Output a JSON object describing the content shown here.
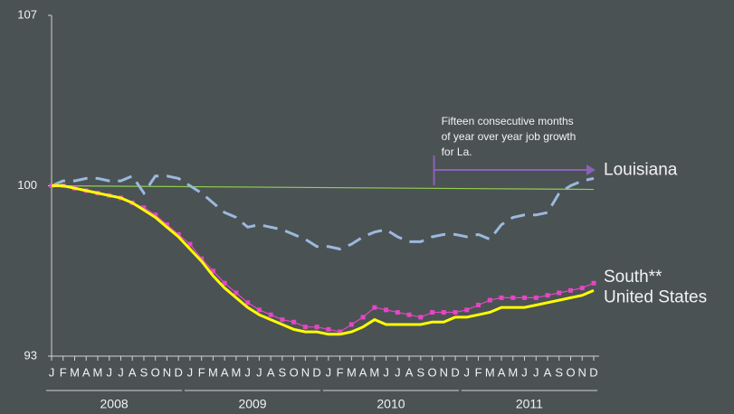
{
  "chart_data": {
    "type": "line",
    "categories": [
      "J",
      "F",
      "M",
      "A",
      "M",
      "J",
      "J",
      "A",
      "S",
      "O",
      "N",
      "D",
      "J",
      "F",
      "M",
      "A",
      "M",
      "J",
      "J",
      "A",
      "S",
      "O",
      "N",
      "D",
      "J",
      "F",
      "M",
      "A",
      "M",
      "J",
      "J",
      "A",
      "S",
      "O",
      "N",
      "D",
      "J",
      "F",
      "M",
      "A",
      "M",
      "J",
      "J",
      "A",
      "S",
      "O",
      "N",
      "D"
    ],
    "years": [
      "2008",
      "2009",
      "2010",
      "2011"
    ],
    "ylim": [
      93,
      107
    ],
    "yticks": [
      93,
      100,
      107
    ],
    "series": [
      {
        "name": "Louisiana",
        "color": "#9bb9de",
        "dashed": true,
        "values": [
          100.0,
          100.2,
          100.2,
          100.3,
          100.3,
          100.2,
          100.2,
          100.4,
          99.7,
          100.4,
          100.4,
          100.3,
          100.0,
          99.7,
          99.3,
          98.9,
          98.7,
          98.3,
          98.4,
          98.3,
          98.2,
          98.0,
          97.8,
          97.5,
          97.5,
          97.4,
          97.6,
          97.9,
          98.1,
          98.2,
          97.9,
          97.7,
          97.7,
          97.9,
          98.0,
          98.0,
          97.9,
          98.0,
          97.8,
          98.4,
          98.7,
          98.8,
          98.8,
          98.9,
          99.7,
          100.0,
          100.2,
          100.3
        ]
      },
      {
        "name": "South**",
        "color": "#e447c4",
        "markers": true,
        "values": [
          100.0,
          100.0,
          99.9,
          99.8,
          99.7,
          99.6,
          99.5,
          99.3,
          99.1,
          98.8,
          98.4,
          98.0,
          97.6,
          97.0,
          96.5,
          96.0,
          95.6,
          95.2,
          94.9,
          94.7,
          94.5,
          94.4,
          94.2,
          94.2,
          94.1,
          94.0,
          94.3,
          94.6,
          95.0,
          94.9,
          94.8,
          94.7,
          94.6,
          94.8,
          94.8,
          94.8,
          94.9,
          95.1,
          95.3,
          95.4,
          95.4,
          95.4,
          95.4,
          95.5,
          95.6,
          95.7,
          95.8,
          96.0
        ]
      },
      {
        "name": "United States",
        "color": "#ffff00",
        "values": [
          100.0,
          100.0,
          99.9,
          99.8,
          99.7,
          99.6,
          99.5,
          99.3,
          99.0,
          98.7,
          98.3,
          97.9,
          97.4,
          96.9,
          96.3,
          95.8,
          95.4,
          95.0,
          94.7,
          94.5,
          94.3,
          94.1,
          94.0,
          94.0,
          93.9,
          93.9,
          94.0,
          94.2,
          94.5,
          94.3,
          94.3,
          94.3,
          94.3,
          94.4,
          94.4,
          94.6,
          94.6,
          94.7,
          94.8,
          95.0,
          95.0,
          95.0,
          95.1,
          95.2,
          95.3,
          95.4,
          95.5,
          95.7
        ]
      }
    ],
    "reference_line": {
      "values": [
        100,
        99.85
      ],
      "color": "#8fd14f"
    },
    "annotation": {
      "lines": [
        "Fifteen consecutive months",
        "of year over year job growth",
        "for La."
      ],
      "color": "#8a62b8"
    }
  }
}
